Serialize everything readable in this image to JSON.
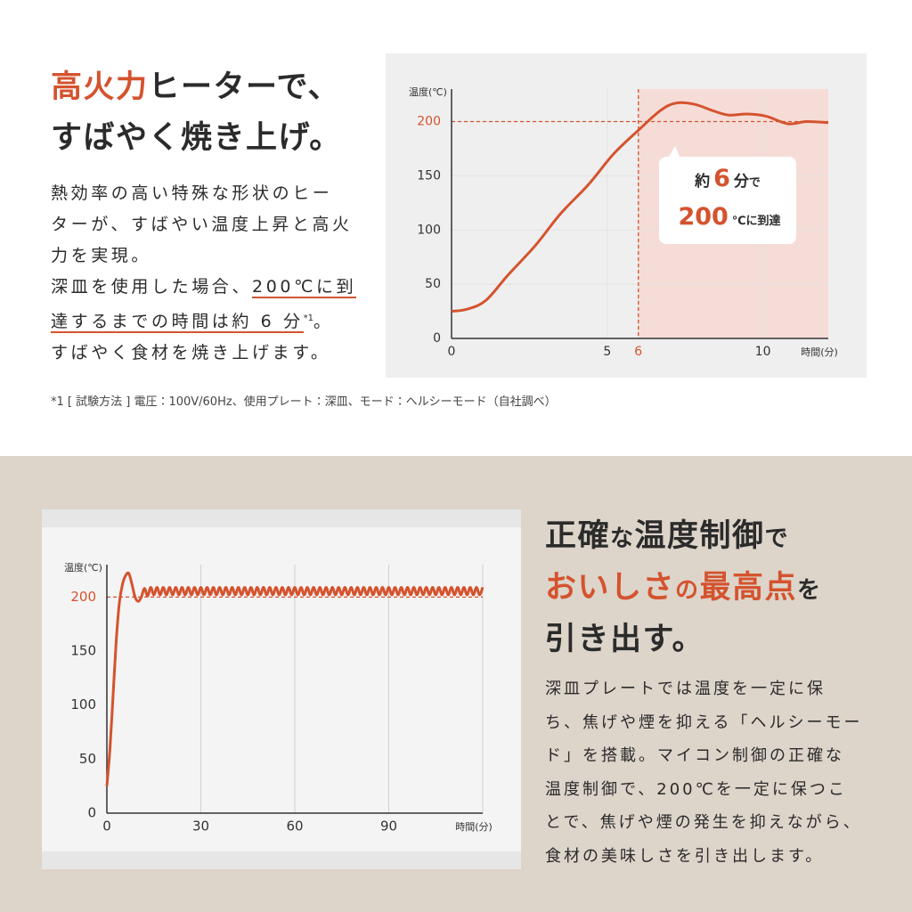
{
  "accent_color": "#d4532e",
  "section1": {
    "heading": [
      [
        {
          "text": "高火力",
          "accent": true
        },
        {
          "text": "ヒーターで、"
        }
      ],
      [
        {
          "text": "すばやく焼き上げ。"
        }
      ]
    ],
    "body": [
      [
        {
          "text": "熱効率の高い特殊な形状のヒー"
        }
      ],
      [
        {
          "text": "ターが、すばやい温度上昇と高火"
        }
      ],
      [
        {
          "text": "力を実現。"
        }
      ],
      [
        {
          "text": "深皿を使用した場合、"
        },
        {
          "text": "200℃に到",
          "underline": true
        }
      ],
      [
        {
          "text": "達するまでの時間は約 6 分",
          "underline": true
        },
        {
          "text": "*1",
          "sup": true
        },
        {
          "text": "。"
        }
      ],
      [
        {
          "text": "すばやく食材を焼き上げます。"
        }
      ]
    ],
    "footnote": "*1 [ 試験方法 ] 電圧：100V/60Hz、使用プレート：深皿、モード：ヘルシーモード（自社調べ）"
  },
  "section2": {
    "heading": [
      [
        {
          "text": "正確"
        },
        {
          "text": "な",
          "small": true
        },
        {
          "text": "温度制御"
        },
        {
          "text": "で",
          "small": true
        }
      ],
      [
        {
          "text": "おいしさ",
          "accent": true
        },
        {
          "text": "の",
          "accent": true,
          "small": true
        },
        {
          "text": "最高点",
          "accent": true
        },
        {
          "text": "を",
          "small": true
        }
      ],
      [
        {
          "text": "引き出す。"
        }
      ]
    ],
    "body": [
      [
        {
          "text": "深皿プレートでは温度を一定に保"
        }
      ],
      [
        {
          "text": "ち、焦げや煙を抑える「ヘルシーモー"
        }
      ],
      [
        {
          "text": "ド」を搭載。マイコン制御の正確な"
        }
      ],
      [
        {
          "text": "温度制御で、200℃を一定に保つこ"
        }
      ],
      [
        {
          "text": "とで、焦げや煙の発生を抑えながら、"
        }
      ],
      [
        {
          "text": "食材の美味しさを引き出します。"
        }
      ]
    ]
  },
  "chart_data": [
    {
      "type": "line",
      "y_label": "温度(℃)",
      "x_label": "時間(分)",
      "xlim": [
        0,
        12.1
      ],
      "ylim": [
        0,
        230
      ],
      "xticks": [
        0,
        5,
        6,
        10
      ],
      "yticks": [
        0,
        50,
        100,
        150,
        200
      ],
      "grid": "both",
      "color": "#d4532e",
      "x": [
        0,
        0.5,
        1.1,
        1.8,
        2.7,
        3.5,
        4.4,
        5.2,
        6,
        6.7,
        7.2,
        7.8,
        8.4,
        8.9,
        9.5,
        10.1,
        10.8,
        11.4,
        12.1
      ],
      "values": [
        25,
        27,
        35,
        58,
        86,
        115,
        142,
        170,
        192,
        210,
        217,
        216,
        210,
        206,
        207,
        205,
        198,
        200,
        199
      ],
      "reference": {
        "x": 6,
        "y": 200
      },
      "shade_after_reference": true,
      "shade_color": "#f6dcd7",
      "callout": [
        [
          {
            "text": "約"
          },
          {
            "text": "6",
            "accent": true,
            "big": true
          },
          {
            "text": "分"
          },
          {
            "text": "で",
            "small": true
          }
        ],
        [
          {
            "text": "200",
            "accent": true,
            "big": true
          },
          {
            "text": "℃に到達",
            "small": true
          }
        ]
      ]
    },
    {
      "type": "line",
      "y_label": "温度(℃)",
      "x_label": "時間(分)",
      "xlim": [
        0,
        120
      ],
      "ylim": [
        0,
        230
      ],
      "xticks": [
        0,
        30,
        60,
        90
      ],
      "yticks": [
        0,
        50,
        100,
        150,
        200
      ],
      "grid": "x",
      "color": "#d4532e",
      "x": [
        0,
        1,
        2,
        3,
        4,
        5,
        6,
        7,
        8,
        9,
        10,
        11,
        12,
        13,
        14,
        15,
        16,
        17,
        18,
        19,
        20,
        21,
        22,
        23,
        24,
        25,
        26,
        27,
        28,
        29,
        30,
        31,
        32,
        33,
        34,
        35,
        36,
        37,
        38,
        39,
        40,
        41,
        42,
        43,
        44,
        45,
        46,
        47,
        48,
        49,
        50,
        51,
        52,
        53,
        54,
        55,
        56,
        57,
        58,
        59,
        60,
        61,
        62,
        63,
        64,
        65,
        66,
        67,
        68,
        69,
        70,
        71,
        72,
        73,
        74,
        75,
        76,
        77,
        78,
        79,
        80,
        81,
        82,
        83,
        84,
        85,
        86,
        87,
        88,
        89,
        90,
        91,
        92,
        93,
        94,
        95,
        96,
        97,
        98,
        99,
        100,
        101,
        102,
        103,
        104,
        105,
        106,
        107,
        108,
        109,
        110,
        111,
        112,
        113,
        114,
        115,
        116,
        117,
        118,
        119,
        120
      ],
      "values": [
        25,
        60,
        110,
        160,
        195,
        212,
        220,
        222,
        212,
        200,
        196,
        200,
        208,
        201,
        209,
        202,
        209,
        202,
        209,
        202,
        209,
        202,
        209,
        202,
        209,
        202,
        209,
        202,
        209,
        202,
        209,
        202,
        209,
        202,
        209,
        202,
        209,
        202,
        209,
        202,
        209,
        202,
        209,
        202,
        209,
        202,
        209,
        202,
        209,
        202,
        209,
        202,
        209,
        202,
        209,
        202,
        209,
        202,
        209,
        202,
        209,
        202,
        209,
        202,
        209,
        202,
        209,
        202,
        209,
        202,
        209,
        202,
        209,
        202,
        209,
        202,
        209,
        202,
        209,
        202,
        209,
        202,
        209,
        202,
        209,
        202,
        209,
        202,
        209,
        202,
        209,
        202,
        209,
        202,
        209,
        202,
        209,
        202,
        209,
        202,
        209,
        202,
        209,
        202,
        209,
        202,
        209,
        202,
        209,
        202,
        209,
        202,
        209,
        202,
        209,
        202,
        209,
        202,
        209,
        202,
        209
      ],
      "reference": {
        "y": 200
      }
    }
  ]
}
